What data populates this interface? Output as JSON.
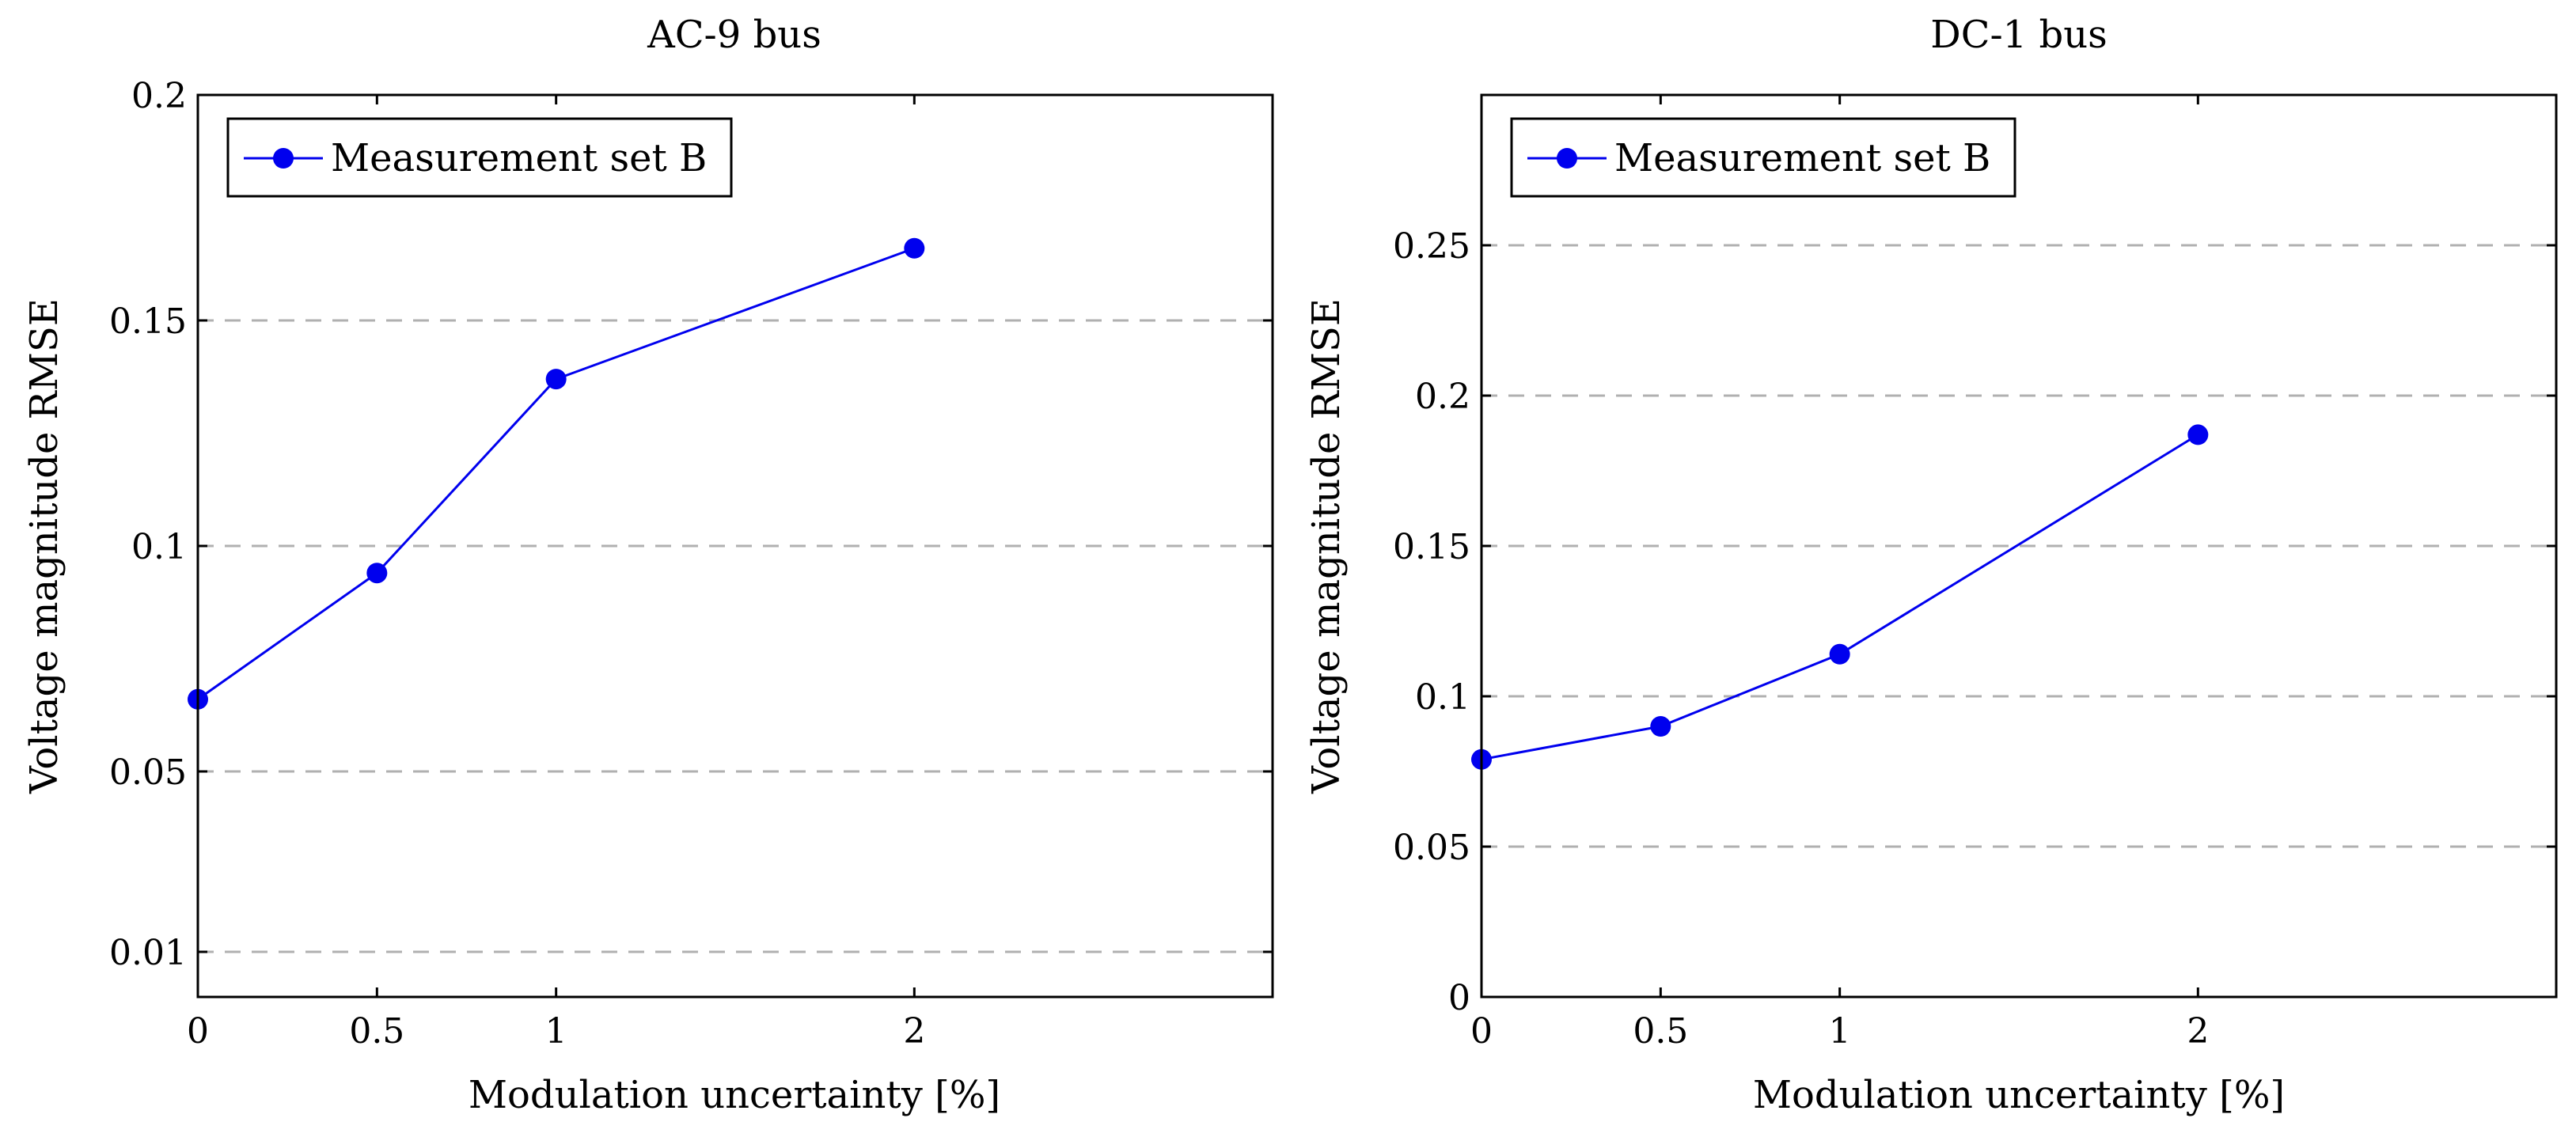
{
  "chart_data": [
    {
      "type": "line",
      "title": "AC-9 bus",
      "xlabel": "Modulation uncertainty [%]",
      "ylabel": "Voltage magnitude RMSE",
      "xlim": [
        0,
        3
      ],
      "ylim": [
        0,
        0.2
      ],
      "xticks": [
        0,
        0.5,
        1,
        2
      ],
      "xtick_labels": [
        "0",
        "0.5",
        "1",
        "2"
      ],
      "yticks": [
        0.01,
        0.05,
        0.1,
        0.15,
        0.2
      ],
      "ytick_labels": [
        "0.01",
        "0.05",
        "0.1",
        "0.15",
        "0.2"
      ],
      "grid": "horizontal dashed",
      "legend_position": "top-left",
      "series": [
        {
          "name": "Measurement set B",
          "color": "#0000ee",
          "x": [
            0,
            0.5,
            1,
            2
          ],
          "y": [
            0.066,
            0.094,
            0.137,
            0.166
          ]
        }
      ]
    },
    {
      "type": "line",
      "title": "DC-1 bus",
      "xlabel": "Modulation uncertainty [%]",
      "ylabel": "Voltage magnitude RMSE",
      "xlim": [
        0,
        3
      ],
      "ylim": [
        0,
        0.3
      ],
      "xticks": [
        0,
        0.5,
        1,
        2
      ],
      "xtick_labels": [
        "0",
        "0.5",
        "1",
        "2"
      ],
      "yticks": [
        0,
        0.05,
        0.1,
        0.15,
        0.2,
        0.25
      ],
      "ytick_labels": [
        "0",
        "0.05",
        "0.1",
        "0.15",
        "0.2",
        "0.25"
      ],
      "grid": "horizontal dashed",
      "legend_position": "top-left",
      "series": [
        {
          "name": "Measurement set B",
          "color": "#0000ee",
          "x": [
            0,
            0.5,
            1,
            2
          ],
          "y": [
            0.079,
            0.09,
            0.114,
            0.187
          ]
        }
      ]
    }
  ]
}
